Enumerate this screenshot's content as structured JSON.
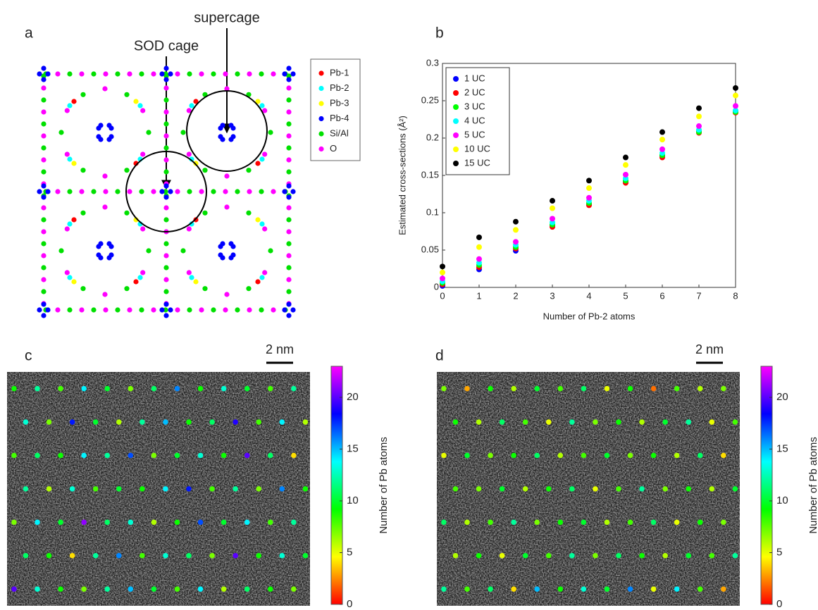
{
  "panel_labels": [
    "a",
    "b",
    "c",
    "d"
  ],
  "figure_a": {
    "annotations": [
      "supercage",
      "SOD cage"
    ],
    "legend": [
      {
        "name": "Pb-1",
        "color": "#ff0000"
      },
      {
        "name": "Pb-2",
        "color": "#00ffff"
      },
      {
        "name": "Pb-3",
        "color": "#ffff00"
      },
      {
        "name": "Pb-4",
        "color": "#0000ff"
      },
      {
        "name": "Si/Al",
        "color": "#00e000"
      },
      {
        "name": "O",
        "color": "#ff00ff"
      }
    ]
  },
  "chart_data": [
    {
      "type": "scatter",
      "x_label": "Number of Pb-2 atoms",
      "y_label": "Estimated cross-sections (Å²)",
      "x": [
        0,
        1,
        2,
        3,
        4,
        5,
        6,
        7,
        8
      ],
      "xlim": [
        0,
        8
      ],
      "xticks": [
        0,
        1,
        2,
        3,
        4,
        5,
        6,
        7,
        8
      ],
      "ylim": [
        0,
        0.3
      ],
      "yticks": [
        0,
        0.05,
        0.1,
        0.15,
        0.2,
        0.25,
        0.3
      ],
      "legend": "upper left",
      "series": [
        {
          "name": "1 UC",
          "color": "#0000ff",
          "values": [
            0.002,
            0.024,
            0.049,
            0.083,
            0.111,
            0.142,
            0.176,
            0.209,
            0.236
          ]
        },
        {
          "name": "2 UC",
          "color": "#ff0000",
          "values": [
            0.004,
            0.027,
            0.052,
            0.081,
            0.11,
            0.14,
            0.174,
            0.207,
            0.234
          ]
        },
        {
          "name": "3 UC",
          "color": "#00ff00",
          "values": [
            0.006,
            0.03,
            0.054,
            0.084,
            0.113,
            0.143,
            0.177,
            0.208,
            0.235
          ]
        },
        {
          "name": "4 UC",
          "color": "#00ffff",
          "values": [
            0.008,
            0.033,
            0.057,
            0.087,
            0.116,
            0.146,
            0.18,
            0.211,
            0.237
          ]
        },
        {
          "name": "5 UC",
          "color": "#ff00ff",
          "values": [
            0.012,
            0.038,
            0.061,
            0.092,
            0.12,
            0.151,
            0.185,
            0.216,
            0.243
          ]
        },
        {
          "name": "10 UC",
          "color": "#ffff00",
          "values": [
            0.02,
            0.054,
            0.077,
            0.106,
            0.133,
            0.164,
            0.198,
            0.229,
            0.257
          ]
        },
        {
          "name": "15 UC",
          "color": "#000000",
          "values": [
            0.028,
            0.067,
            0.088,
            0.116,
            0.143,
            0.174,
            0.208,
            0.24,
            0.267
          ]
        }
      ]
    },
    {
      "type": "image",
      "scale_bar": "2 nm",
      "colorbar_label": "Number of Pb atoms",
      "clim": [
        0,
        23
      ],
      "cticks": [
        0,
        5,
        10,
        15,
        20
      ],
      "values": [
        [
          9,
          12,
          8,
          14,
          10,
          7,
          11,
          16,
          9,
          13,
          10,
          8,
          12
        ],
        [
          13,
          7,
          18,
          10,
          6,
          12,
          15,
          9,
          11,
          19,
          8,
          14,
          6
        ],
        [
          8,
          11,
          9,
          14,
          12,
          17,
          7,
          10,
          13,
          9,
          20,
          11,
          4
        ],
        [
          12,
          6,
          13,
          8,
          10,
          9,
          14,
          18,
          8,
          12,
          7,
          16,
          9
        ],
        [
          7,
          14,
          10,
          21,
          11,
          13,
          6,
          9,
          17,
          10,
          14,
          8,
          12
        ],
        [
          11,
          9,
          4,
          12,
          16,
          8,
          13,
          11,
          7,
          20,
          9,
          13,
          10
        ],
        [
          20,
          13,
          9,
          7,
          12,
          15,
          10,
          8,
          14,
          6,
          11,
          9,
          7
        ]
      ]
    },
    {
      "type": "image",
      "scale_bar": "2 nm",
      "colorbar_label": "Number of Pb atoms",
      "clim": [
        0,
        23
      ],
      "cticks": [
        0,
        5,
        10,
        15,
        20
      ],
      "values": [
        [
          7,
          3,
          9,
          6,
          10,
          8,
          11,
          5,
          9,
          2,
          8,
          6,
          7
        ],
        [
          9,
          6,
          11,
          8,
          5,
          12,
          7,
          9,
          6,
          10,
          12,
          5,
          8
        ],
        [
          5,
          10,
          7,
          9,
          11,
          6,
          8,
          10,
          7,
          9,
          6,
          11,
          4
        ],
        [
          8,
          7,
          10,
          6,
          9,
          11,
          5,
          8,
          12,
          7,
          9,
          6,
          10
        ],
        [
          11,
          6,
          8,
          12,
          7,
          9,
          10,
          6,
          8,
          11,
          5,
          9,
          7
        ],
        [
          6,
          9,
          5,
          10,
          8,
          12,
          7,
          11,
          9,
          6,
          10,
          8,
          12
        ],
        [
          12,
          8,
          11,
          4,
          15,
          9,
          13,
          10,
          16,
          5,
          14,
          8,
          3
        ]
      ]
    }
  ]
}
